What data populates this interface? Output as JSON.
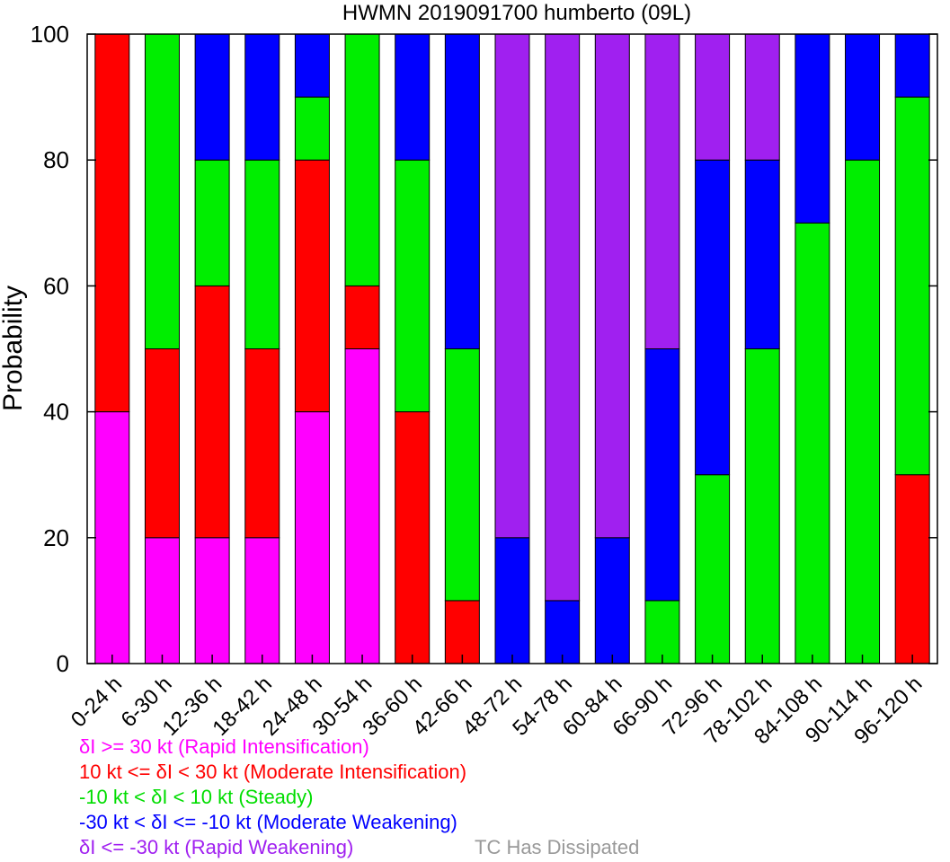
{
  "chart_data": {
    "type": "bar",
    "stacked": true,
    "title": "HWMN 2019091700 humberto (09L)",
    "xlabel": "",
    "ylabel": "Probability",
    "ylim": [
      0,
      100
    ],
    "yticks": [
      0,
      20,
      40,
      60,
      80,
      100
    ],
    "grid": false,
    "categories": [
      "0-24 h",
      "6-30 h",
      "12-36 h",
      "18-42 h",
      "24-48 h",
      "30-54 h",
      "36-60 h",
      "42-66 h",
      "48-72 h",
      "54-78 h",
      "60-84 h",
      "66-90 h",
      "72-96 h",
      "78-102 h",
      "84-108 h",
      "90-114 h",
      "96-120 h"
    ],
    "series": [
      {
        "name": "δI >= 30 kt (Rapid Intensification)",
        "color": "#ff00ff",
        "values": [
          40,
          20,
          20,
          20,
          40,
          50,
          0,
          0,
          0,
          0,
          0,
          0,
          0,
          0,
          0,
          0,
          0
        ]
      },
      {
        "name": "10 kt <= δI < 30 kt (Moderate Intensification)",
        "color": "#ff0000",
        "values": [
          60,
          30,
          40,
          30,
          40,
          10,
          40,
          10,
          0,
          0,
          0,
          0,
          0,
          0,
          0,
          0,
          30
        ]
      },
      {
        "name": "-10 kt < δI < 10 kt (Steady)",
        "color": "#00ee00",
        "values": [
          0,
          50,
          20,
          30,
          10,
          40,
          40,
          40,
          0,
          0,
          0,
          10,
          30,
          50,
          70,
          80,
          60
        ]
      },
      {
        "name": "-30 kt < δI <= -10 kt (Moderate Weakening)",
        "color": "#0000ff",
        "values": [
          0,
          0,
          20,
          20,
          10,
          0,
          20,
          50,
          20,
          10,
          20,
          40,
          50,
          30,
          30,
          20,
          10
        ]
      },
      {
        "name": "δI <= -30 kt (Rapid Weakening)",
        "color": "#a020f0",
        "values": [
          0,
          0,
          0,
          0,
          0,
          0,
          0,
          0,
          80,
          90,
          80,
          50,
          20,
          20,
          0,
          0,
          0
        ]
      }
    ],
    "dissipated": {
      "name": "TC Has Dissipated",
      "color": "#999999"
    }
  }
}
